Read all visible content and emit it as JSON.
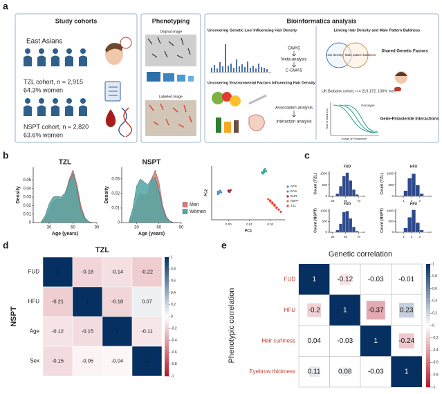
{
  "panel_labels": [
    "a",
    "b",
    "c",
    "d",
    "e"
  ],
  "study_cohorts": {
    "title": "Study cohorts",
    "population": "East Asians",
    "tzl_cohort": "TZL cohort, n = 2,915",
    "tzl_women": "64.3% women",
    "nspt_cohort": "NSPT cohort, n = 2,820",
    "nspt_women": "63.6% women"
  },
  "phenotyping": {
    "title": "Phenotyping",
    "original": "Original image",
    "labelled": "Labelled image"
  },
  "bioinformatics": {
    "title": "Bioinformatics analysis",
    "genetic": {
      "title": "Uncovering Genetic Loci Influencing Hair Density",
      "steps": [
        "GWAS",
        "Meta-analysis",
        "C-GWAS"
      ]
    },
    "environmental": {
      "title": "Uncovering Environmental Factors Influencing Hair Density",
      "steps": [
        "Association analysis",
        "Interaction analysis"
      ]
    },
    "baldness": {
      "title": "Linking Hair Density and Male Pattern Baldness",
      "venn": [
        "Hair density",
        "Male pattern baldness"
      ],
      "shared": "Shared Genetic Factors",
      "ukb": "UK Biobank cohort, n = 219,172, 100% men",
      "interactions": "Gene-Finasteride Interactions",
      "genotype": "Genotype",
      "y_label": "Risk of Baldness",
      "x_label": "Usage of Finasteride"
    }
  },
  "chart_data": [
    {
      "type": "area",
      "title": "TZL",
      "xlabel": "Age (years)",
      "ylabel": "Density",
      "x": [
        20,
        25,
        30,
        35,
        40,
        45,
        50,
        55,
        60,
        65,
        70,
        75,
        80,
        85
      ],
      "series": [
        {
          "name": "Men",
          "color": "#e2776f",
          "values": [
            0.001,
            0.005,
            0.015,
            0.025,
            0.028,
            0.027,
            0.032,
            0.05,
            0.062,
            0.045,
            0.02,
            0.006,
            0.001,
            0
          ]
        },
        {
          "name": "Women",
          "color": "#4fa7a4",
          "values": [
            0.001,
            0.008,
            0.022,
            0.03,
            0.031,
            0.03,
            0.035,
            0.048,
            0.058,
            0.04,
            0.015,
            0.005,
            0.001,
            0
          ]
        }
      ],
      "xlim": [
        10,
        90
      ],
      "xticks": [
        30,
        60,
        90
      ],
      "ylim": [
        0,
        0.065
      ],
      "yticks": [
        0,
        0.01,
        0.02,
        0.03,
        0.04,
        0.05
      ],
      "legend": false
    },
    {
      "type": "area",
      "title": "NSPT",
      "xlabel": "Age (years)",
      "ylabel": "Density",
      "x": [
        20,
        25,
        30,
        35,
        40,
        45,
        50,
        55,
        60,
        65,
        70,
        75,
        80,
        85
      ],
      "series": [
        {
          "name": "Men",
          "color": "#e2776f",
          "values": [
            0,
            0.005,
            0.015,
            0.02,
            0.019,
            0.02,
            0.03,
            0.036,
            0.028,
            0.012,
            0.004,
            0.001,
            0,
            0
          ]
        },
        {
          "name": "Women",
          "color": "#4fa7a4",
          "values": [
            0.001,
            0.01,
            0.025,
            0.03,
            0.028,
            0.026,
            0.03,
            0.031,
            0.022,
            0.01,
            0.003,
            0.001,
            0,
            0
          ]
        }
      ],
      "xlim": [
        10,
        90
      ],
      "xticks": [
        30,
        60,
        90
      ],
      "ylim": [
        0,
        0.038
      ],
      "yticks": [
        0,
        0.01,
        0.02,
        0.03
      ],
      "legend": true
    },
    {
      "type": "scatter",
      "xlabel": "PC1",
      "ylabel": "PC2",
      "series": [
        {
          "name": "AFR",
          "color": "#4a8fc4",
          "x": [
            -0.005,
            -0.0045,
            -0.004,
            -0.005,
            -0.0035
          ],
          "values": [
            0.002,
            0,
            0.004,
            -0.002,
            0.001
          ]
        },
        {
          "name": "EAS",
          "color": "#36a894",
          "x": [
            0.016,
            0.017,
            0.018,
            0.0165,
            0.0175,
            0.017
          ],
          "values": [
            0.038,
            0.042,
            0.04,
            0.036,
            0.044,
            0.039
          ]
        },
        {
          "name": "EUR",
          "color": "#a02828",
          "x": [
            0,
            0.0005,
            0.001
          ],
          "values": [
            0.004,
            0.002,
            0.005
          ]
        },
        {
          "name": "NSPT",
          "color": "#e8663e",
          "x": [
            0.019,
            0.02,
            0.021,
            0.022,
            0.023
          ],
          "values": [
            -0.012,
            -0.016,
            -0.02,
            -0.024,
            -0.028
          ]
        },
        {
          "name": "TZL",
          "color": "#e03a3a",
          "x": [
            0.02,
            0.021,
            0.022,
            0.023,
            0.024,
            0.025
          ],
          "values": [
            -0.014,
            -0.018,
            -0.022,
            -0.027,
            -0.031,
            -0.035
          ]
        }
      ],
      "xlim": [
        -0.008,
        0.027
      ],
      "xticks": [
        {
          "value": 0,
          "label": "0.00"
        },
        0.01,
        0.02
      ],
      "ylim": [
        -0.05,
        0.05
      ],
      "legend": "right"
    },
    {
      "type": "histogram",
      "title": "FUD",
      "ylabel": "Count (TZL)",
      "bins": [
        30,
        35,
        40,
        45,
        50,
        55,
        60,
        65,
        70,
        75
      ],
      "counts": [
        20,
        120,
        450,
        900,
        1050,
        700,
        300,
        80,
        15
      ],
      "color": "#2e4a8c",
      "xlim": [
        25,
        80
      ],
      "xticks": [
        30,
        50,
        70
      ],
      "ylim": [
        0,
        1100
      ],
      "yticks": [
        0,
        500,
        1000
      ]
    },
    {
      "type": "histogram",
      "title": "HFU",
      "ylabel": "Count (TZL)",
      "bins": [
        0.5,
        1,
        1.5,
        2,
        2.5,
        3,
        3.5,
        4
      ],
      "counts": [
        30,
        250,
        800,
        1000,
        500,
        120,
        20
      ],
      "color": "#2e4a8c",
      "xlim": [
        0,
        4.5
      ],
      "xticks": [
        1,
        2,
        3
      ],
      "ylim": [
        0,
        1100
      ],
      "yticks": [
        0,
        500,
        1000
      ]
    },
    {
      "type": "histogram",
      "title": "FUD",
      "ylabel": "Count (NSPT)",
      "bins": [
        30,
        35,
        40,
        45,
        50,
        55,
        60,
        65,
        70,
        75
      ],
      "counts": [
        10,
        100,
        400,
        950,
        1000,
        650,
        250,
        60,
        10
      ],
      "color": "#2e4a8c",
      "xlim": [
        25,
        80
      ],
      "xticks": [
        30,
        50,
        70
      ],
      "ylim": [
        0,
        1100
      ],
      "yticks": [
        0,
        500,
        1000
      ]
    },
    {
      "type": "histogram",
      "title": "HFU",
      "ylabel": "Count (NSPT)",
      "bins": [
        0.5,
        1,
        1.5,
        2,
        2.5,
        3,
        3.5,
        4
      ],
      "counts": [
        20,
        200,
        700,
        1050,
        450,
        100,
        15
      ],
      "color": "#2e4a8c",
      "xlim": [
        0,
        4.5
      ],
      "xticks": [
        1,
        2,
        3
      ],
      "ylim": [
        0,
        1100
      ],
      "yticks": [
        0,
        500,
        1000
      ]
    },
    {
      "type": "heatmap",
      "style": "full",
      "title": "TZL",
      "ylabel": "NSPT",
      "rows": [
        "FUD",
        "HFU",
        "Age",
        "Sex"
      ],
      "values": [
        [
          1,
          -0.18,
          -0.14,
          -0.22
        ],
        [
          -0.21,
          1,
          -0.18,
          0.07
        ],
        [
          -0.12,
          -0.15,
          1,
          -0.11
        ],
        [
          -0.15,
          -0.05,
          -0.04,
          1
        ]
      ],
      "clim": [
        -1,
        1
      ],
      "cticks": [
        1,
        0.8,
        0.6,
        0.4,
        0.2,
        0,
        -0.2,
        -0.4,
        -0.6,
        -0.8,
        -1
      ],
      "row_color": "#222"
    },
    {
      "type": "heatmap",
      "style": "squares",
      "title": "Genetic correlation",
      "ylabel": "Phenotypic correlation",
      "rows": [
        "FUD",
        "HFU",
        "Hair curliness",
        "Eyebrow thickness"
      ],
      "values": [
        [
          1,
          -0.12,
          -0.03,
          -0.01
        ],
        [
          -0.2,
          1,
          -0.37,
          0.23
        ],
        [
          0.04,
          -0.03,
          1,
          -0.24
        ],
        [
          0.11,
          0.08,
          -0.03,
          1
        ]
      ],
      "clim": [
        -1,
        1
      ],
      "cticks": [
        1,
        0.8,
        0.6,
        0.4,
        0.2,
        0,
        -0.2,
        -0.4,
        -0.6,
        -0.8,
        -1
      ],
      "row_color": "#c0392b"
    }
  ]
}
